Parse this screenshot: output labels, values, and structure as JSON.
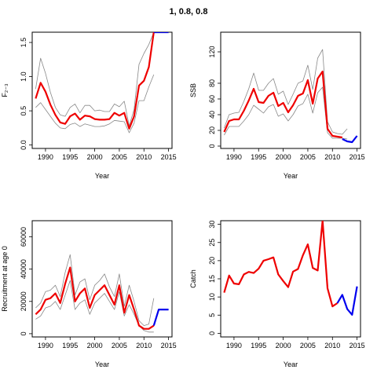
{
  "title": "1, 0.8, 0.8",
  "chart_data": [
    {
      "type": "line",
      "xlabel": "Year",
      "ylabel": "F₂₋₃",
      "xlim": [
        1987.3,
        2015.7
      ],
      "ylim": [
        -0.05,
        1.65
      ],
      "xticks": [
        1990,
        1995,
        2000,
        2005,
        2010,
        2015
      ],
      "yticks": [
        0.0,
        0.5,
        1.0,
        1.5
      ],
      "series": [
        {
          "color": "#888888",
          "x": [
            1988,
            1989,
            1990,
            1991,
            1992,
            1993,
            1994,
            1995,
            1996,
            1997,
            1998,
            1999,
            2000,
            2001,
            2002,
            2003,
            2004,
            2005,
            2006,
            2007,
            2008,
            2009,
            2010,
            2011,
            2012
          ],
          "y": [
            0.55,
            0.62,
            0.52,
            0.42,
            0.32,
            0.25,
            0.24,
            0.3,
            0.32,
            0.27,
            0.31,
            0.29,
            0.27,
            0.27,
            0.28,
            0.31,
            0.36,
            0.35,
            0.34,
            0.18,
            0.32,
            0.65,
            0.65,
            0.85,
            1.03
          ]
        },
        {
          "color": "#888888",
          "x": [
            1988,
            1989,
            1990,
            1991,
            1992,
            1993,
            1994,
            1995,
            1996,
            1997,
            1998,
            1999,
            2000,
            2001,
            2002,
            2003,
            2004,
            2005,
            2006,
            2007,
            2008,
            2009,
            2010,
            2011,
            2012
          ],
          "y": [
            0.82,
            1.27,
            1.05,
            0.77,
            0.55,
            0.44,
            0.42,
            0.55,
            0.6,
            0.47,
            0.58,
            0.58,
            0.5,
            0.51,
            0.49,
            0.49,
            0.6,
            0.56,
            0.64,
            0.28,
            0.52,
            1.18,
            1.34,
            1.47,
            1.65
          ]
        },
        {
          "color": "#ee0000",
          "x": [
            1988,
            1989,
            1990,
            1991,
            1992,
            1993,
            1994,
            1995,
            1996,
            1997,
            1998,
            1999,
            2000,
            2001,
            2002,
            2003,
            2004,
            2005,
            2006,
            2007,
            2008,
            2009,
            2010,
            2011,
            2012
          ],
          "y": [
            0.68,
            0.91,
            0.78,
            0.59,
            0.44,
            0.33,
            0.31,
            0.42,
            0.46,
            0.37,
            0.43,
            0.42,
            0.38,
            0.37,
            0.37,
            0.38,
            0.47,
            0.43,
            0.47,
            0.24,
            0.42,
            0.87,
            0.94,
            1.14,
            1.65
          ]
        },
        {
          "color": "#0000ee",
          "x": [
            2012,
            2013,
            2014,
            2015
          ],
          "y": [
            1.65,
            1.65,
            1.65,
            1.65
          ]
        }
      ]
    },
    {
      "type": "line",
      "xlabel": "Year",
      "ylabel": "SSB",
      "xlim": [
        1987.3,
        2015.7
      ],
      "ylim": [
        -3,
        145
      ],
      "xticks": [
        1990,
        1995,
        2000,
        2005,
        2010,
        2015
      ],
      "yticks": [
        0,
        20,
        40,
        60,
        80,
        120
      ],
      "series": [
        {
          "color": "#888888",
          "x": [
            1988,
            1989,
            1990,
            1991,
            1992,
            1993,
            1994,
            1995,
            1996,
            1997,
            1998,
            1999,
            2000,
            2001,
            2002,
            2003,
            2004,
            2005,
            2006,
            2007,
            2008,
            2009,
            2010,
            2011,
            2012,
            2013
          ],
          "y": [
            14,
            25,
            25,
            25,
            32,
            40,
            52,
            47,
            42,
            50,
            53,
            38,
            41,
            32,
            40,
            51,
            54,
            66,
            42,
            68,
            75,
            17,
            10,
            10,
            10,
            9
          ]
        },
        {
          "color": "#888888",
          "x": [
            1988,
            1989,
            1990,
            1991,
            1992,
            1993,
            1994,
            1995,
            1996,
            1997,
            1998,
            1999,
            2000,
            2001,
            2002,
            2003,
            2004,
            2005,
            2006,
            2007,
            2008,
            2009,
            2010,
            2011,
            2012,
            2013
          ],
          "y": [
            23,
            40,
            42,
            43,
            57,
            73,
            93,
            71,
            71,
            80,
            86,
            66,
            70,
            53,
            66,
            80,
            83,
            103,
            72,
            112,
            123,
            31,
            18,
            16,
            15,
            22
          ]
        },
        {
          "color": "#ee0000",
          "x": [
            1988,
            1989,
            1990,
            1991,
            1992,
            1993,
            1994,
            1995,
            1996,
            1997,
            1998,
            1999,
            2000,
            2001,
            2002,
            2003,
            2004,
            2005,
            2006,
            2007,
            2008,
            2009,
            2010,
            2011,
            2012
          ],
          "y": [
            18,
            32,
            34,
            34,
            45,
            58,
            73,
            56,
            55,
            64,
            68,
            51,
            55,
            43,
            52,
            64,
            67,
            84,
            54,
            86,
            95,
            22,
            13,
            12,
            11
          ]
        },
        {
          "color": "#0000ee",
          "x": [
            2012,
            2013,
            2014,
            2015
          ],
          "y": [
            9,
            6,
            5,
            13
          ]
        }
      ]
    },
    {
      "type": "line",
      "xlabel": "Year",
      "ylabel": "Recruitment at age 0",
      "xlim": [
        1987.3,
        2015.7
      ],
      "ylim": [
        -2000,
        70000
      ],
      "xticks": [
        1990,
        1995,
        2000,
        2005,
        2010,
        2015
      ],
      "yticks": [
        0,
        20000,
        40000,
        60000
      ],
      "series": [
        {
          "color": "#888888",
          "x": [
            1988,
            1989,
            1990,
            1991,
            1992,
            1993,
            1994,
            1995,
            1996,
            1997,
            1998,
            1999,
            2000,
            2001,
            2002,
            2003,
            2004,
            2005,
            2006,
            2007,
            2008,
            2009,
            2010,
            2011,
            2012
          ],
          "y": [
            9000,
            11000,
            16000,
            17000,
            20000,
            15000,
            24000,
            33000,
            15000,
            19000,
            21000,
            12000,
            19000,
            22000,
            25000,
            20000,
            15000,
            26000,
            11000,
            18000,
            12000,
            5000,
            2000,
            1000,
            1000
          ]
        },
        {
          "color": "#888888",
          "x": [
            1988,
            1989,
            1990,
            1991,
            1992,
            1993,
            1994,
            1995,
            1996,
            1997,
            1998,
            1999,
            2000,
            2001,
            2002,
            2003,
            2004,
            2005,
            2006,
            2007,
            2008,
            2009,
            2010,
            2011,
            2012
          ],
          "y": [
            16000,
            19000,
            26000,
            27000,
            30000,
            23000,
            38000,
            49000,
            24000,
            32000,
            34000,
            21000,
            30000,
            33000,
            37000,
            29000,
            23000,
            37000,
            17000,
            30000,
            20000,
            8000,
            5000,
            6000,
            22000
          ]
        },
        {
          "color": "#ee0000",
          "x": [
            1988,
            1989,
            1990,
            1991,
            1992,
            1993,
            1994,
            1995,
            1996,
            1997,
            1998,
            1999,
            2000,
            2001,
            2002,
            2003,
            2004,
            2005,
            2006,
            2007,
            2008,
            2009,
            2010,
            2011,
            2012
          ],
          "y": [
            12000,
            15000,
            21000,
            22000,
            25000,
            19000,
            31000,
            41000,
            20000,
            25000,
            28000,
            16000,
            24000,
            27000,
            30000,
            24000,
            18000,
            30000,
            13000,
            24000,
            15000,
            5000,
            3000,
            3000,
            5000
          ]
        },
        {
          "color": "#0000ee",
          "x": [
            2012,
            2013,
            2014,
            2015
          ],
          "y": [
            5000,
            15000,
            15000,
            15000
          ]
        }
      ]
    },
    {
      "type": "line",
      "xlabel": "Year",
      "ylabel": "Catch",
      "xlim": [
        1987.3,
        2015.7
      ],
      "ylim": [
        -1,
        31
      ],
      "xticks": [
        1990,
        1995,
        2000,
        2005,
        2010,
        2015
      ],
      "yticks": [
        0,
        5,
        10,
        15,
        20,
        25,
        30
      ],
      "series": [
        {
          "color": "#ee0000",
          "x": [
            1988,
            1989,
            1990,
            1991,
            1992,
            1993,
            1994,
            1995,
            1996,
            1997,
            1998,
            1999,
            2000,
            2001,
            2002,
            2003,
            2004,
            2005,
            2006,
            2007,
            2008,
            2009,
            2010,
            2011
          ],
          "y": [
            11.2,
            15.9,
            13.7,
            13.5,
            16.2,
            16.9,
            16.6,
            17.8,
            20.0,
            20.4,
            20.9,
            16.2,
            14.4,
            12.7,
            17.0,
            17.7,
            21.5,
            24.5,
            18.0,
            17.3,
            31.0,
            12.4,
            7.4,
            8.3
          ]
        },
        {
          "color": "#0000ee",
          "x": [
            2011,
            2012,
            2013,
            2014,
            2015
          ],
          "y": [
            8.3,
            10.6,
            6.7,
            5.1,
            12.9
          ]
        }
      ]
    }
  ]
}
